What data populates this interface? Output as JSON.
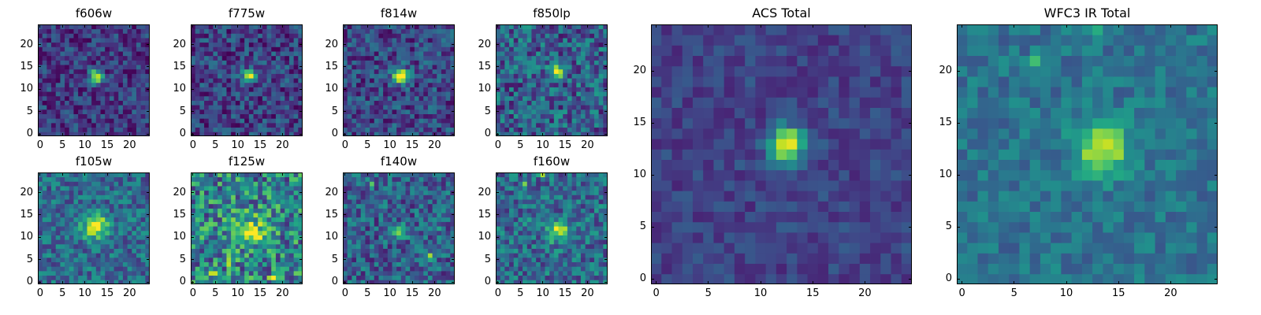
{
  "chart_data": [
    {
      "id": "f606w",
      "type": "heatmap",
      "title": "f606w",
      "grid_size": 25,
      "colormap": "viridis",
      "xlim": [
        0,
        24
      ],
      "ylim": [
        0,
        24
      ],
      "xticks": [
        0,
        5,
        10,
        15,
        20
      ],
      "yticks": [
        0,
        5,
        10,
        15,
        20
      ],
      "source_center": [
        12.5,
        13
      ],
      "source_peak": 0.85,
      "source_spread": 1.0,
      "noise_level": 0.18,
      "background": 0.18,
      "extra_sources": [],
      "seed": 11
    },
    {
      "id": "f775w",
      "type": "heatmap",
      "title": "f775w",
      "grid_size": 25,
      "colormap": "viridis",
      "xlim": [
        0,
        24
      ],
      "ylim": [
        0,
        24
      ],
      "xticks": [
        0,
        5,
        10,
        15,
        20
      ],
      "yticks": [
        0,
        5,
        10,
        15,
        20
      ],
      "source_center": [
        12.5,
        13
      ],
      "source_peak": 0.8,
      "source_spread": 1.0,
      "noise_level": 0.2,
      "background": 0.2,
      "extra_sources": [],
      "seed": 23
    },
    {
      "id": "f814w",
      "type": "heatmap",
      "title": "f814w",
      "grid_size": 25,
      "colormap": "viridis",
      "xlim": [
        0,
        24
      ],
      "ylim": [
        0,
        24
      ],
      "xticks": [
        0,
        5,
        10,
        15,
        20
      ],
      "yticks": [
        0,
        5,
        10,
        15,
        20
      ],
      "source_center": [
        12.5,
        13
      ],
      "source_peak": 0.85,
      "source_spread": 1.2,
      "noise_level": 0.2,
      "background": 0.22,
      "extra_sources": [],
      "seed": 37
    },
    {
      "id": "f850lp",
      "type": "heatmap",
      "title": "f850lp",
      "grid_size": 25,
      "colormap": "viridis",
      "xlim": [
        0,
        24
      ],
      "ylim": [
        0,
        24
      ],
      "xticks": [
        0,
        5,
        10,
        15,
        20
      ],
      "yticks": [
        0,
        5,
        10,
        15,
        20
      ],
      "source_center": [
        13.5,
        14
      ],
      "source_peak": 0.7,
      "source_spread": 1.1,
      "noise_level": 0.25,
      "background": 0.3,
      "extra_sources": [
        [
          10.5,
          5,
          0.4,
          0.5
        ]
      ],
      "seed": 41
    },
    {
      "id": "f105w",
      "type": "heatmap",
      "title": "f105w",
      "grid_size": 25,
      "colormap": "viridis",
      "xlim": [
        0,
        24
      ],
      "ylim": [
        0,
        24
      ],
      "xticks": [
        0,
        5,
        10,
        15,
        20
      ],
      "yticks": [
        0,
        5,
        10,
        15,
        20
      ],
      "source_center": [
        12.5,
        12.5
      ],
      "source_peak": 0.6,
      "source_spread": 2.0,
      "noise_level": 0.2,
      "background": 0.35,
      "extra_sources": [],
      "seed": 53
    },
    {
      "id": "f125w",
      "type": "heatmap",
      "title": "f125w",
      "grid_size": 25,
      "colormap": "viridis",
      "xlim": [
        0,
        24
      ],
      "ylim": [
        0,
        24
      ],
      "xticks": [
        0,
        5,
        10,
        15,
        20
      ],
      "yticks": [
        0,
        5,
        10,
        15,
        20
      ],
      "source_center": [
        13,
        12
      ],
      "source_peak": 0.35,
      "source_spread": 2.5,
      "noise_level": 0.32,
      "background": 0.45,
      "extra_sources": [
        [
          15,
          10,
          0.45,
          0.7
        ],
        [
          8,
          5,
          0.35,
          0.8
        ],
        [
          18,
          1,
          0.4,
          0.6
        ],
        [
          4,
          2,
          0.35,
          0.8
        ]
      ],
      "seed": 67
    },
    {
      "id": "f140w",
      "type": "heatmap",
      "title": "f140w",
      "grid_size": 25,
      "colormap": "viridis",
      "xlim": [
        0,
        24
      ],
      "ylim": [
        0,
        24
      ],
      "xticks": [
        0,
        5,
        10,
        15,
        20
      ],
      "yticks": [
        0,
        5,
        10,
        15,
        20
      ],
      "source_center": [
        12.5,
        11.5
      ],
      "source_peak": 0.6,
      "source_spread": 1.0,
      "noise_level": 0.22,
      "background": 0.3,
      "extra_sources": [
        [
          6,
          22,
          0.5,
          0.5
        ],
        [
          21,
          12,
          0.45,
          0.5
        ],
        [
          19,
          6,
          0.35,
          0.6
        ]
      ],
      "seed": 79
    },
    {
      "id": "f160w",
      "type": "heatmap",
      "title": "f160w",
      "grid_size": 25,
      "colormap": "viridis",
      "xlim": [
        0,
        24
      ],
      "ylim": [
        0,
        24
      ],
      "xticks": [
        0,
        5,
        10,
        15,
        20
      ],
      "yticks": [
        0,
        5,
        10,
        15,
        20
      ],
      "source_center": [
        13.5,
        11.5
      ],
      "source_peak": 0.55,
      "source_spread": 1.6,
      "noise_level": 0.22,
      "background": 0.35,
      "extra_sources": [
        [
          6,
          22,
          0.45,
          0.5
        ],
        [
          10,
          24,
          0.4,
          0.5
        ],
        [
          7,
          14,
          0.3,
          0.6
        ]
      ],
      "seed": 89
    },
    {
      "id": "acs_total",
      "type": "heatmap",
      "title": "ACS Total",
      "grid_size": 25,
      "colormap": "viridis",
      "xlim": [
        0,
        24
      ],
      "ylim": [
        0,
        24
      ],
      "xticks": [
        0,
        5,
        10,
        15,
        20
      ],
      "yticks": [
        0,
        5,
        10,
        15,
        20
      ],
      "source_center": [
        12.5,
        13
      ],
      "source_peak": 0.78,
      "source_spread": 1.2,
      "noise_level": 0.1,
      "background": 0.2,
      "extra_sources": [],
      "seed": 101
    },
    {
      "id": "wfc3_ir_total",
      "type": "heatmap",
      "title": "WFC3 IR Total",
      "grid_size": 25,
      "colormap": "viridis",
      "xlim": [
        0,
        24
      ],
      "ylim": [
        0,
        24
      ],
      "xticks": [
        0,
        5,
        10,
        15,
        20
      ],
      "yticks": [
        0,
        5,
        10,
        15,
        20
      ],
      "source_center": [
        13.5,
        12.5
      ],
      "source_peak": 0.55,
      "source_spread": 1.8,
      "noise_level": 0.12,
      "background": 0.38,
      "extra_sources": [
        [
          7,
          21,
          0.3,
          0.5
        ],
        [
          12.5,
          24,
          0.25,
          0.6
        ]
      ],
      "seed": 113
    }
  ]
}
